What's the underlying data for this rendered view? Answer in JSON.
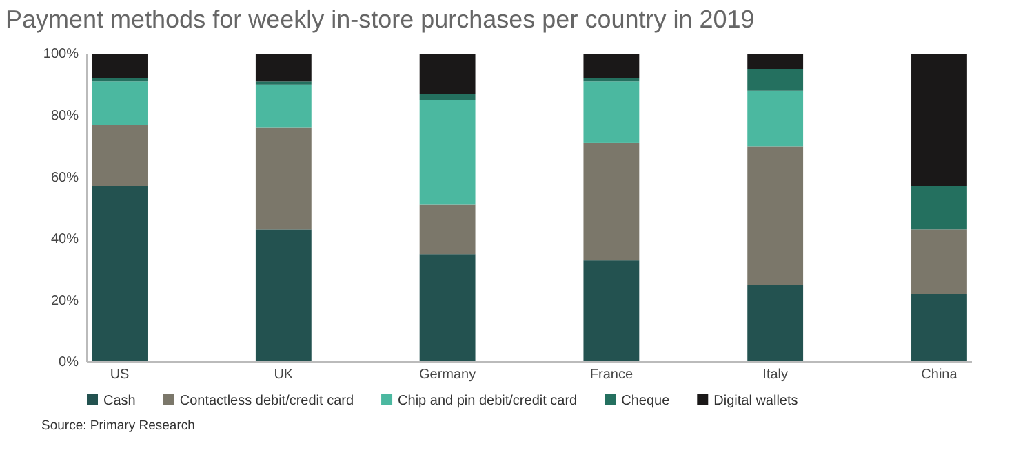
{
  "chart_data": {
    "type": "bar",
    "title": "Payment methods for weekly in-store purchases per country in 2019",
    "categories": [
      "US",
      "UK",
      "Germany",
      "France",
      "Italy",
      "China"
    ],
    "stacked": true,
    "series": [
      {
        "name": "Cash",
        "color": "#235250",
        "values": [
          57,
          43,
          35,
          33,
          25,
          22
        ]
      },
      {
        "name": "Contactless debit/credit card",
        "color": "#7b776a",
        "values": [
          20,
          33,
          16,
          38,
          45,
          21
        ]
      },
      {
        "name": "Chip and pin debit/credit card",
        "color": "#4bb8a0",
        "values": [
          14,
          14,
          34,
          20,
          18,
          0
        ]
      },
      {
        "name": "Cheque",
        "color": "#24705f",
        "values": [
          1,
          1,
          2,
          1,
          7,
          14
        ]
      },
      {
        "name": "Digital wallets",
        "color": "#1a1818",
        "values": [
          8,
          9,
          13,
          8,
          5,
          43
        ]
      }
    ],
    "ylim": [
      0,
      100
    ],
    "yticks": [
      {
        "value": 0,
        "label": "0%"
      },
      {
        "value": 20,
        "label": "20%"
      },
      {
        "value": 40,
        "label": "40%"
      },
      {
        "value": 60,
        "label": "60%"
      },
      {
        "value": 80,
        "label": "80%"
      },
      {
        "value": 100,
        "label": "100%"
      }
    ],
    "grid": false,
    "legend": "bottom",
    "annotations": [
      "Source: Primary Research"
    ]
  }
}
